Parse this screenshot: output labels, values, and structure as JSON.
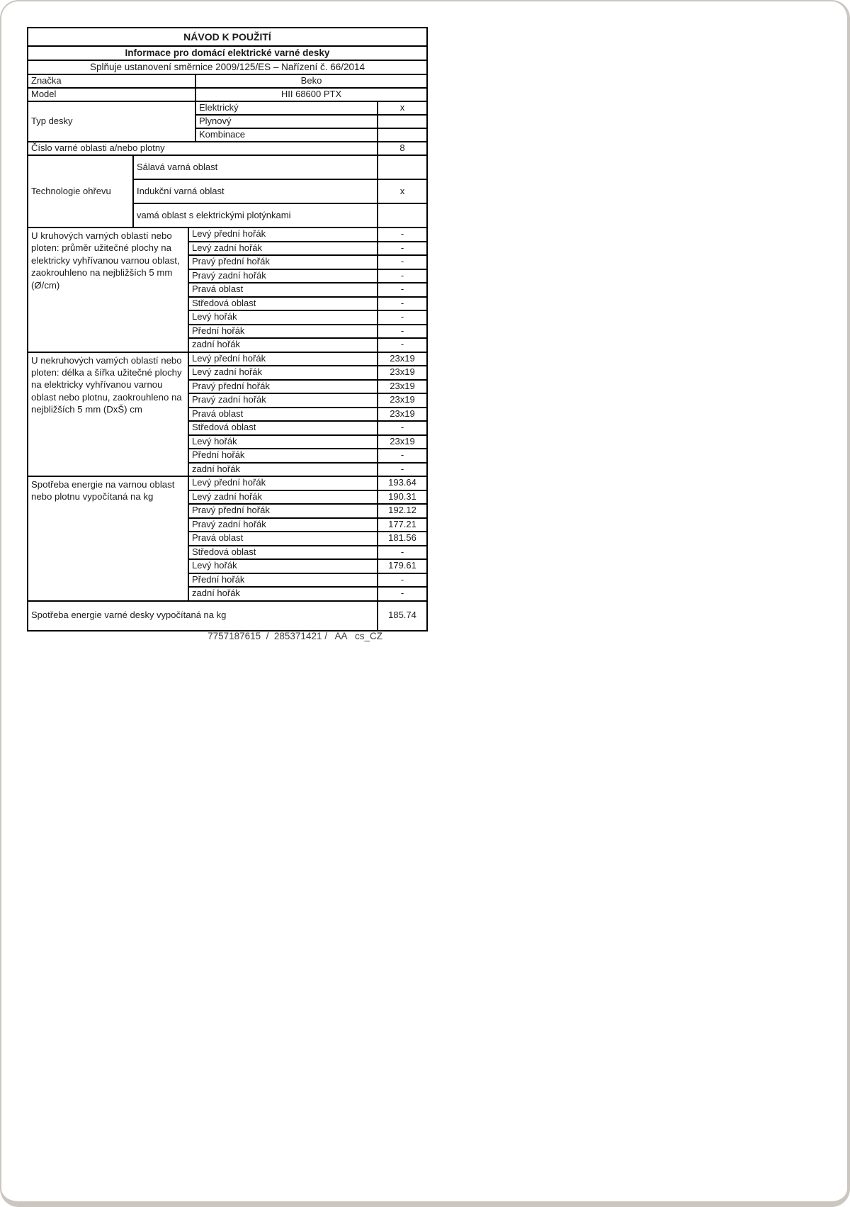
{
  "document": {
    "title": "NÁVOD K POUŽITÍ",
    "subtitle": "Informace pro domácí elektrické varné desky",
    "directive": "Splňuje ustanovení směrnice 2009/125/ES – Nařízení č. 66/2014",
    "footer_code": "7757187615  /  285371421 /   AA   cs_CZ"
  },
  "brand": {
    "label": "Značka",
    "value": "Beko"
  },
  "model": {
    "label": "Model",
    "value": "HII 68600 PTX"
  },
  "hob_type": {
    "label": "Typ desky",
    "options": [
      {
        "label": "Elektrický",
        "value": "x"
      },
      {
        "label": "Plynový",
        "value": ""
      },
      {
        "label": "Kombinace",
        "value": ""
      }
    ]
  },
  "zones_count": {
    "label": "Číslo varné oblasti a/nebo plotny",
    "value": "8"
  },
  "heating_tech": {
    "label": "Technologie ohřevu",
    "options": [
      {
        "label": "Sálavá varná oblast",
        "value": ""
      },
      {
        "label": "Indukční varná oblast",
        "value": "x"
      },
      {
        "label": "vamá oblast s elektrickými plotýnkami",
        "value": ""
      }
    ]
  },
  "sections": [
    {
      "label": "U kruhových varných oblastí nebo ploten: průměr užitečné plochy na elektricky vyhřívanou varnou oblast, zaokrouhleno na nejbližších 5 mm (Ø/cm)",
      "rows": [
        {
          "label": "Levý přední hořák",
          "value": "-"
        },
        {
          "label": "Levý zadní hořák",
          "value": "-"
        },
        {
          "label": "Pravý přední hořák",
          "value": "-"
        },
        {
          "label": "Pravý zadní hořák",
          "value": "-"
        },
        {
          "label": "Pravá oblast",
          "value": "-"
        },
        {
          "label": "Středová oblast",
          "value": "-"
        },
        {
          "label": "Levý hořák",
          "value": "-"
        },
        {
          "label": "Přední hořák",
          "value": "-"
        },
        {
          "label": "zadní hořák",
          "value": "-"
        }
      ]
    },
    {
      "label": "U nekruhových vamých oblastí nebo ploten: délka a šířka užitečné plochy na elektricky vyhřívanou varnou oblast nebo plotnu, zaokrouhleno na nejbližších 5 mm (DxŠ) cm",
      "rows": [
        {
          "label": "Levý přední hořák",
          "value": "23x19"
        },
        {
          "label": "Levý zadní hořák",
          "value": "23x19"
        },
        {
          "label": "Pravý přední hořák",
          "value": "23x19"
        },
        {
          "label": "Pravý zadní hořák",
          "value": "23x19"
        },
        {
          "label": "Pravá oblast",
          "value": "23x19"
        },
        {
          "label": "Středová oblast",
          "value": "-"
        },
        {
          "label": "Levý hořák",
          "value": "23x19"
        },
        {
          "label": "Přední hořák",
          "value": "-"
        },
        {
          "label": "zadní hořák",
          "value": "-"
        }
      ]
    },
    {
      "label": "Spotřeba energie na varnou oblast nebo plotnu vypočítaná na kg",
      "rows": [
        {
          "label": "Levý přední hořák",
          "value": "193.64"
        },
        {
          "label": "Levý zadní hořák",
          "value": "190.31"
        },
        {
          "label": "Pravý přední hořák",
          "value": "192.12"
        },
        {
          "label": "Pravý zadní hořák",
          "value": "177.21"
        },
        {
          "label": "Pravá oblast",
          "value": "181.56"
        },
        {
          "label": "Středová oblast",
          "value": "-"
        },
        {
          "label": "Levý hořák",
          "value": "179.61"
        },
        {
          "label": "Přední hořák",
          "value": "-"
        },
        {
          "label": "zadní hořák",
          "value": "-"
        }
      ]
    }
  ],
  "total": {
    "label": "Spotřeba energie varné desky vypočítaná na kg",
    "value": "185.74"
  }
}
